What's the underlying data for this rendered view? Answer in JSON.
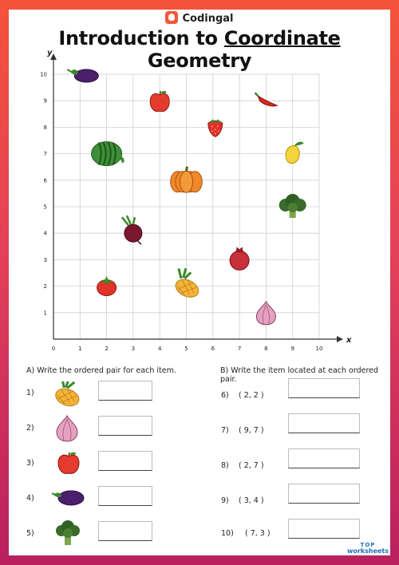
{
  "brand": {
    "name": "Codingal"
  },
  "title": {
    "before": "Introduction to ",
    "underlined": "Coordinate",
    "after": " Geometry"
  },
  "chart_data": {
    "type": "scatter",
    "xlabel": "x",
    "ylabel": "y",
    "xlim": [
      0,
      10
    ],
    "ylim": [
      0,
      10
    ],
    "grid": true,
    "x_ticks": [
      "0",
      "1",
      "2",
      "3",
      "4",
      "5",
      "6",
      "7",
      "8",
      "9",
      "10"
    ],
    "y_ticks": [
      "1",
      "2",
      "3",
      "4",
      "5",
      "6",
      "7",
      "8",
      "9",
      "10"
    ],
    "points": [
      {
        "item": "eggplant",
        "x": 1,
        "y": 10
      },
      {
        "item": "apple",
        "x": 4,
        "y": 9
      },
      {
        "item": "chili",
        "x": 8,
        "y": 9
      },
      {
        "item": "strawberry",
        "x": 6,
        "y": 8
      },
      {
        "item": "watermelon",
        "x": 2,
        "y": 7
      },
      {
        "item": "mango",
        "x": 9,
        "y": 7
      },
      {
        "item": "pumpkin",
        "x": 5,
        "y": 6
      },
      {
        "item": "broccoli",
        "x": 9,
        "y": 5
      },
      {
        "item": "beetroot",
        "x": 3,
        "y": 4
      },
      {
        "item": "pomegranate",
        "x": 7,
        "y": 3
      },
      {
        "item": "tomato",
        "x": 2,
        "y": 2
      },
      {
        "item": "pineapple",
        "x": 5,
        "y": 2
      },
      {
        "item": "onion",
        "x": 8,
        "y": 1
      }
    ]
  },
  "section_a": {
    "heading": "A) Write the ordered pair for each item.",
    "questions": [
      {
        "num": "1)",
        "icon": "pineapple-icon"
      },
      {
        "num": "2)",
        "icon": "onion-icon"
      },
      {
        "num": "3)",
        "icon": "apple-icon"
      },
      {
        "num": "4)",
        "icon": "eggplant-icon"
      },
      {
        "num": "5)",
        "icon": "broccoli-icon"
      }
    ]
  },
  "section_b": {
    "heading": "B) Write the item located at each ordered pair.",
    "questions": [
      {
        "num": "6)",
        "pair": "( 2, 2 )"
      },
      {
        "num": "7)",
        "pair": "( 9, 7 )"
      },
      {
        "num": "8)",
        "pair": "( 2, 7 )"
      },
      {
        "num": "9)",
        "pair": "( 3, 4 )"
      },
      {
        "num": "10)",
        "pair": "( 7, 3 )"
      }
    ]
  },
  "corner_mark": {
    "line1": "TOP",
    "line2": "worksheets"
  },
  "colors": {
    "frame_top": "#f4533a",
    "frame_bottom": "#b8205e",
    "grid": "#cfcfcf"
  }
}
